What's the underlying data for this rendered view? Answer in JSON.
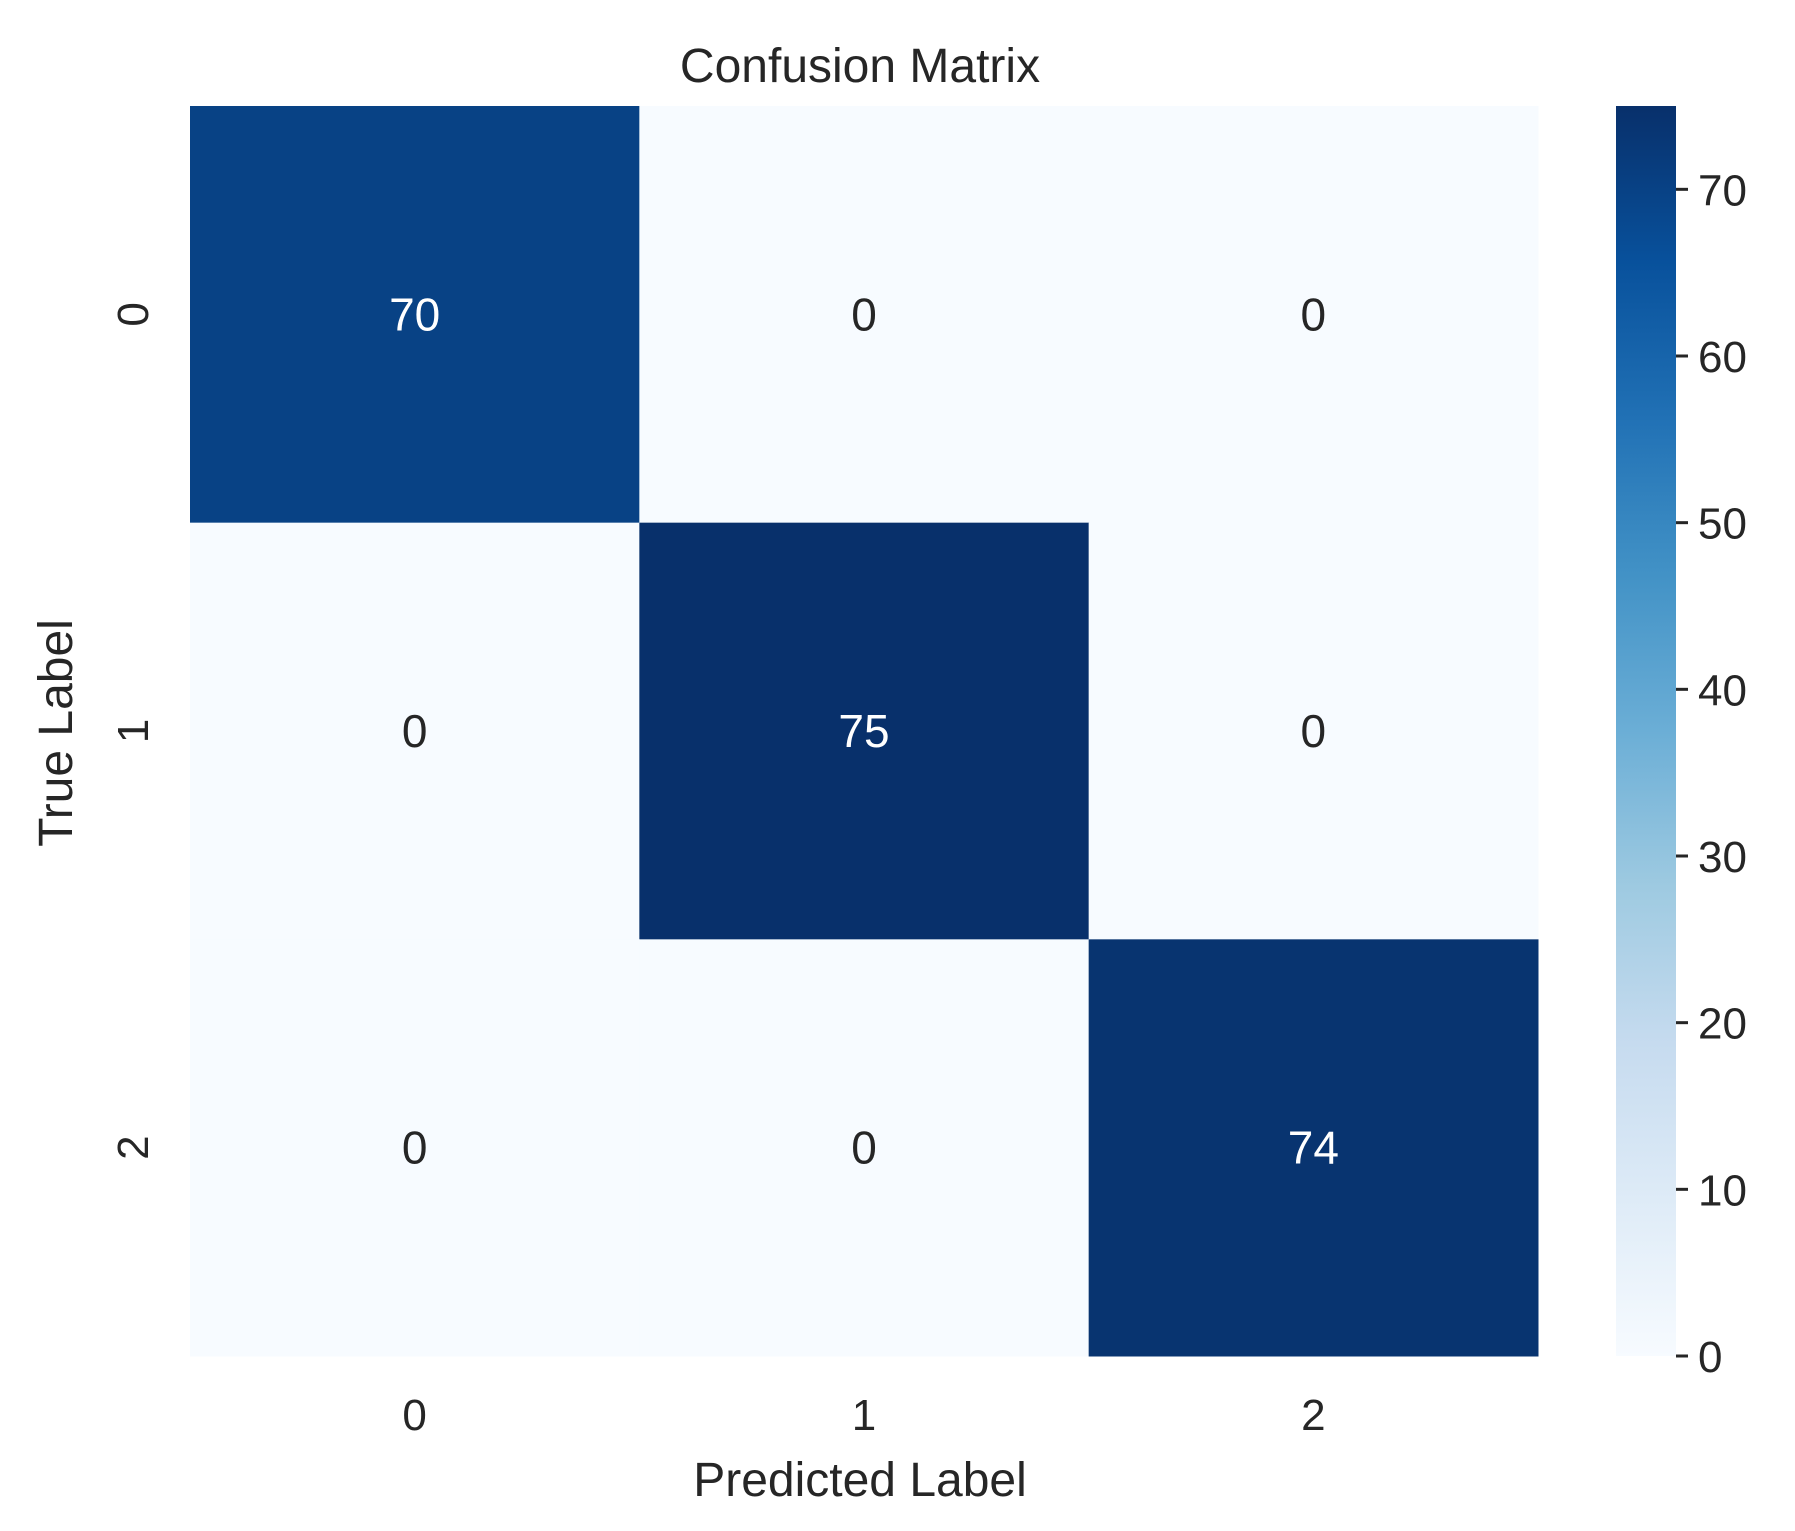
{
  "chart_data": {
    "type": "heatmap",
    "title": "Confusion Matrix",
    "xlabel": "Predicted Label",
    "ylabel": "True Label",
    "x_categories": [
      "0",
      "1",
      "2"
    ],
    "y_categories": [
      "0",
      "1",
      "2"
    ],
    "values": [
      [
        70,
        0,
        0
      ],
      [
        0,
        75,
        0
      ],
      [
        0,
        0,
        74
      ]
    ],
    "colormap": "Blues",
    "colorbar": {
      "range": [
        0,
        75
      ],
      "ticks": [
        0,
        10,
        20,
        30,
        40,
        50,
        60,
        70
      ],
      "tick_labels": [
        "0",
        "10",
        "20",
        "30",
        "40",
        "50",
        "60",
        "70"
      ]
    },
    "annotations": true,
    "grid": false
  }
}
